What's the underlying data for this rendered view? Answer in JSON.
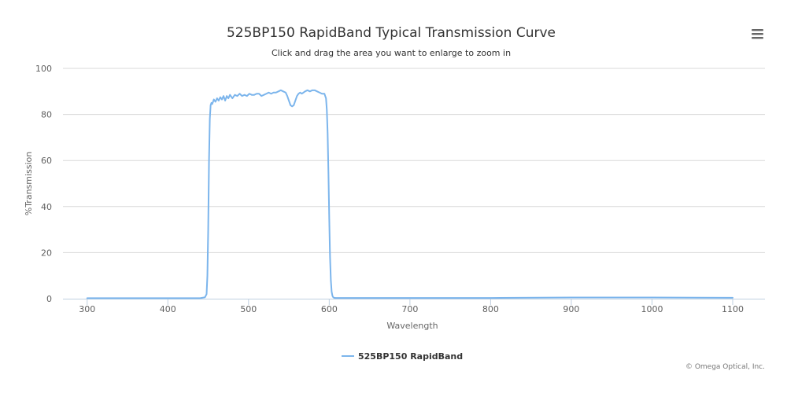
{
  "menu": {
    "icon": "hamburger-menu-icon"
  },
  "credit": "© Omega Optical, Inc.",
  "colors": {
    "series": "#7cb5ec",
    "grid": "#d8d8d8",
    "axis": "#c0d0e0",
    "menu": "#666666"
  },
  "chart_data": {
    "type": "line",
    "title": "525BP150 RapidBand Typical Transmission Curve",
    "subtitle": "Click and drag the area you want to enlarge to zoom in",
    "xlabel": "Wavelength",
    "ylabel": "%Transmission",
    "xlim": [
      270,
      1140
    ],
    "ylim": [
      0,
      100
    ],
    "xticks": [
      300,
      400,
      500,
      600,
      700,
      800,
      900,
      1000,
      1100
    ],
    "yticks": [
      0,
      20,
      40,
      60,
      80,
      100
    ],
    "grid": true,
    "legend": "bottom-center",
    "series": [
      {
        "name": "525BP150 RapidBand",
        "x": [
          300,
          350,
          400,
          440,
          446,
          448,
          449,
          450,
          451,
          452,
          453,
          454,
          455,
          457,
          459,
          461,
          463,
          465,
          467,
          469,
          471,
          473,
          475,
          477,
          480,
          483,
          486,
          489,
          492,
          495,
          498,
          501,
          504,
          507,
          510,
          513,
          516,
          519,
          522,
          525,
          528,
          531,
          534,
          537,
          540,
          543,
          546,
          548,
          550,
          552,
          554,
          556,
          558,
          560,
          562,
          564,
          566,
          568,
          570,
          573,
          576,
          579,
          582,
          585,
          588,
          591,
          594,
          596,
          597,
          598,
          599,
          600,
          601,
          602,
          603,
          604,
          605,
          606,
          608,
          612,
          620,
          700,
          800,
          900,
          1000,
          1100
        ],
        "y": [
          0.2,
          0.2,
          0.2,
          0.2,
          0.6,
          2,
          10,
          30,
          60,
          78,
          84,
          85,
          84.5,
          86.5,
          85.5,
          87,
          86,
          87.5,
          86.5,
          88,
          86,
          88,
          87,
          88.5,
          87,
          88.5,
          88,
          89,
          88,
          88.5,
          88,
          89,
          88.5,
          88.5,
          89,
          89,
          88,
          88.5,
          89,
          89.5,
          89,
          89.5,
          89.5,
          90,
          90.5,
          90,
          89.5,
          88,
          86,
          84,
          83.5,
          84,
          86,
          88,
          89,
          89.5,
          89,
          89.5,
          90,
          90.5,
          90,
          90.5,
          90.5,
          90,
          89.5,
          89,
          89,
          87,
          82,
          72,
          55,
          35,
          18,
          8,
          3,
          1.2,
          0.6,
          0.4,
          0.3,
          0.3,
          0.3,
          0.3,
          0.3,
          0.5,
          0.5,
          0.4
        ]
      }
    ]
  }
}
